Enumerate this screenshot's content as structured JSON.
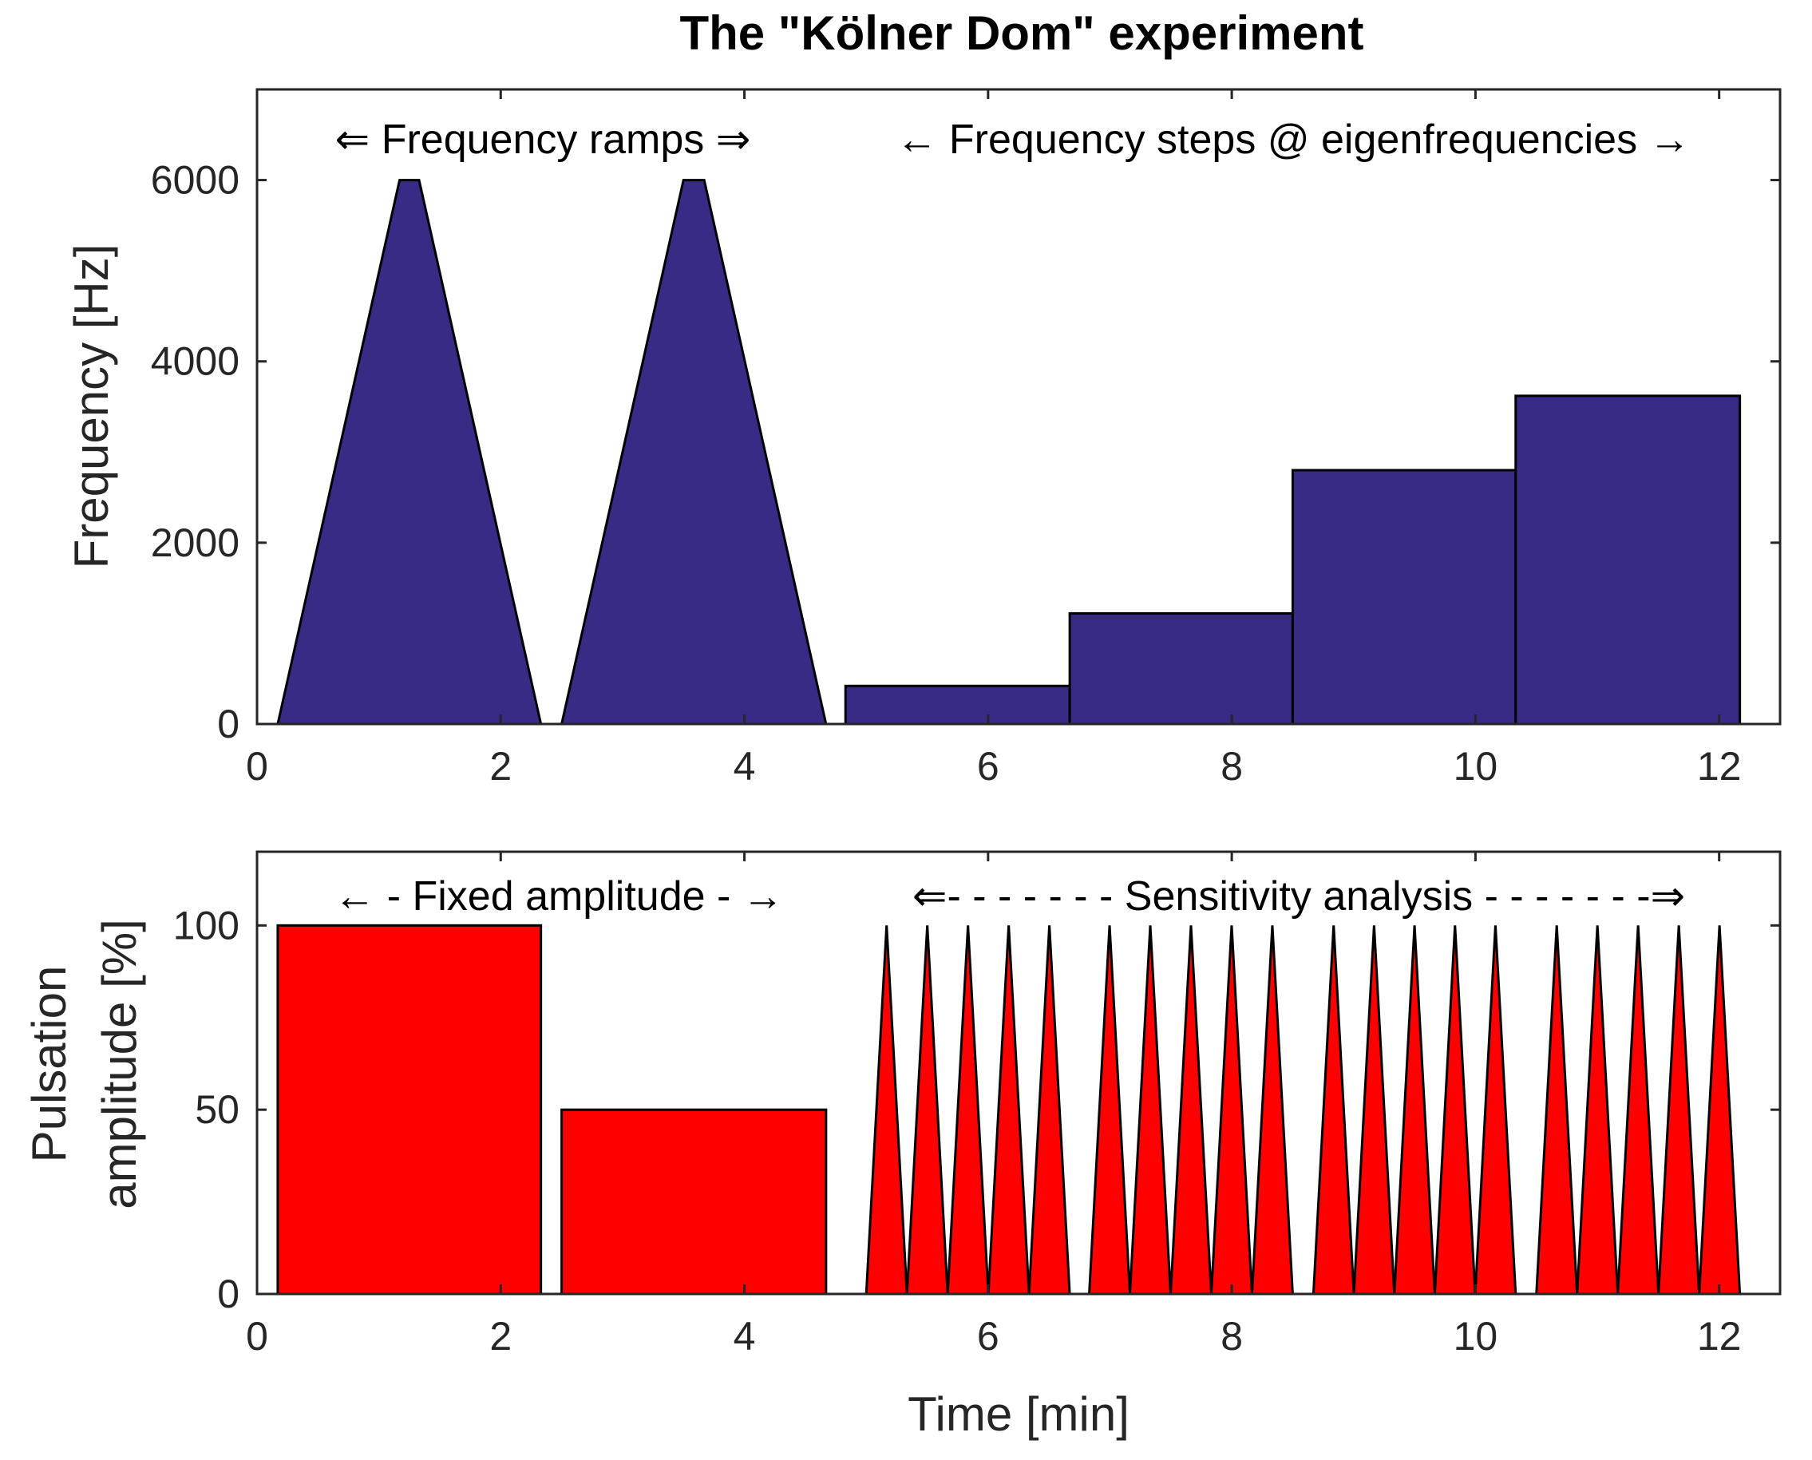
{
  "figure_title": "The \"Kölner Dom\" experiment",
  "colors": {
    "freq_fill": "#372b85",
    "amp_fill": "#ff0000",
    "edge": "#000000"
  },
  "chart_data": [
    {
      "type": "area",
      "name": "frequency",
      "title": "The \"Kölner Dom\" experiment",
      "xlabel": "",
      "ylabel": "Frequency [Hz]",
      "xlim": [
        0,
        12.5
      ],
      "ylim": [
        0,
        7000
      ],
      "xticks": [
        0,
        2,
        4,
        6,
        8,
        10,
        12
      ],
      "yticks": [
        0,
        2000,
        4000,
        6000
      ],
      "grid": false,
      "ramps": [
        {
          "t0": 0.17,
          "t_up": 1.17,
          "t_top_end": 1.33,
          "t1": 2.33,
          "f_max": 6000
        },
        {
          "t0": 2.5,
          "t_up": 3.5,
          "t_top_end": 3.67,
          "t1": 4.67,
          "f_max": 6000
        }
      ],
      "steps": [
        {
          "t0": 4.83,
          "t1": 6.67,
          "f": 420
        },
        {
          "t0": 6.67,
          "t1": 8.5,
          "f": 1220
        },
        {
          "t0": 8.5,
          "t1": 10.33,
          "f": 2800
        },
        {
          "t0": 10.33,
          "t1": 12.17,
          "f": 3620
        }
      ],
      "annotations": {
        "ramps": "⇐  Frequency ramps  ⇒",
        "steps": "←  Frequency steps @ eigenfrequencies  →"
      }
    },
    {
      "type": "area",
      "name": "pulsation-amplitude",
      "xlabel": "Time [min]",
      "ylabel": [
        "Pulsation",
        "amplitude [%]"
      ],
      "xlim": [
        0,
        12.5
      ],
      "ylim": [
        0,
        120
      ],
      "xticks": [
        0,
        2,
        4,
        6,
        8,
        10,
        12
      ],
      "yticks": [
        0,
        50,
        100
      ],
      "grid": false,
      "blocks": [
        {
          "t0": 0.17,
          "t1": 2.33,
          "amp": 100
        },
        {
          "t0": 2.5,
          "t1": 4.67,
          "amp": 50
        }
      ],
      "triangle_groups": [
        {
          "t0": 5.0,
          "t1": 6.67,
          "count": 5,
          "peak": 100
        },
        {
          "t0": 6.83,
          "t1": 8.5,
          "count": 5,
          "peak": 100
        },
        {
          "t0": 8.67,
          "t1": 10.33,
          "count": 5,
          "peak": 100
        },
        {
          "t0": 10.5,
          "t1": 12.17,
          "count": 5,
          "peak": 100
        }
      ],
      "annotations": {
        "fixed": "← -  Fixed amplitude  -  →",
        "sensitivity": "⇐- - - - - - - Sensitivity  analysis - - - - - - -⇒"
      }
    }
  ]
}
